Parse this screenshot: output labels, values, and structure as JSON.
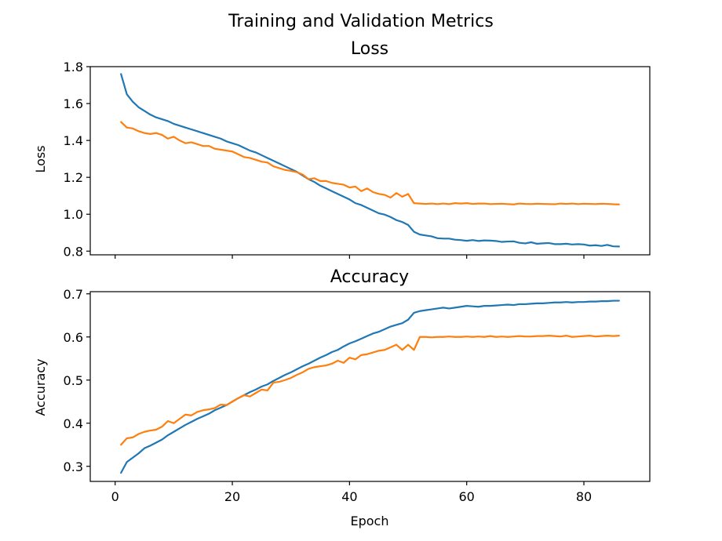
{
  "figure": {
    "suptitle": "Training and Validation Metrics",
    "xlabel": "Epoch",
    "colors": {
      "train": "#1f77b4",
      "val": "#ff7f0e"
    }
  },
  "chart_data": [
    {
      "type": "line",
      "title": "Loss",
      "xlabel": "",
      "ylabel": "Loss",
      "xlim": [
        -4.25,
        91.25
      ],
      "ylim": [
        0.78,
        1.8
      ],
      "xticks": [
        0,
        20,
        40,
        60,
        80
      ],
      "show_xticklabels": false,
      "yticks": [
        0.8,
        1.0,
        1.2,
        1.4,
        1.6,
        1.8
      ],
      "ytick_labels": [
        "0.8",
        "1.0",
        "1.2",
        "1.4",
        "1.6",
        "1.8"
      ],
      "grid": false,
      "x": [
        1,
        2,
        3,
        4,
        5,
        6,
        7,
        8,
        9,
        10,
        11,
        12,
        13,
        14,
        15,
        16,
        17,
        18,
        19,
        20,
        21,
        22,
        23,
        24,
        25,
        26,
        27,
        28,
        29,
        30,
        31,
        32,
        33,
        34,
        35,
        36,
        37,
        38,
        39,
        40,
        41,
        42,
        43,
        44,
        45,
        46,
        47,
        48,
        49,
        50,
        51,
        52,
        53,
        54,
        55,
        56,
        57,
        58,
        59,
        60,
        61,
        62,
        63,
        64,
        65,
        66,
        67,
        68,
        69,
        70,
        71,
        72,
        73,
        74,
        75,
        76,
        77,
        78,
        79,
        80,
        81,
        82,
        83,
        84,
        85,
        86
      ],
      "series": [
        {
          "color_key": "train",
          "values": [
            1.76,
            1.65,
            1.61,
            1.58,
            1.56,
            1.54,
            1.525,
            1.515,
            1.505,
            1.49,
            1.48,
            1.47,
            1.46,
            1.45,
            1.44,
            1.43,
            1.42,
            1.41,
            1.395,
            1.385,
            1.375,
            1.36,
            1.345,
            1.335,
            1.32,
            1.305,
            1.29,
            1.275,
            1.26,
            1.245,
            1.23,
            1.21,
            1.19,
            1.175,
            1.155,
            1.14,
            1.125,
            1.11,
            1.095,
            1.08,
            1.06,
            1.05,
            1.035,
            1.02,
            1.005,
            0.998,
            0.985,
            0.968,
            0.958,
            0.942,
            0.905,
            0.89,
            0.885,
            0.88,
            0.87,
            0.868,
            0.868,
            0.862,
            0.86,
            0.856,
            0.86,
            0.855,
            0.858,
            0.857,
            0.855,
            0.85,
            0.852,
            0.853,
            0.845,
            0.842,
            0.848,
            0.84,
            0.842,
            0.844,
            0.838,
            0.838,
            0.84,
            0.836,
            0.838,
            0.836,
            0.83,
            0.832,
            0.828,
            0.834,
            0.826,
            0.825
          ]
        },
        {
          "color_key": "val",
          "values": [
            1.5,
            1.47,
            1.465,
            1.45,
            1.44,
            1.435,
            1.44,
            1.43,
            1.41,
            1.42,
            1.4,
            1.385,
            1.39,
            1.38,
            1.37,
            1.37,
            1.355,
            1.35,
            1.345,
            1.34,
            1.325,
            1.31,
            1.305,
            1.295,
            1.285,
            1.28,
            1.26,
            1.25,
            1.24,
            1.235,
            1.228,
            1.215,
            1.19,
            1.195,
            1.18,
            1.18,
            1.17,
            1.165,
            1.16,
            1.145,
            1.15,
            1.125,
            1.14,
            1.12,
            1.11,
            1.105,
            1.09,
            1.115,
            1.095,
            1.11,
            1.06,
            1.058,
            1.056,
            1.058,
            1.055,
            1.058,
            1.055,
            1.06,
            1.058,
            1.06,
            1.056,
            1.058,
            1.058,
            1.055,
            1.056,
            1.057,
            1.055,
            1.053,
            1.058,
            1.056,
            1.055,
            1.057,
            1.056,
            1.055,
            1.054,
            1.058,
            1.056,
            1.058,
            1.055,
            1.057,
            1.056,
            1.055,
            1.057,
            1.056,
            1.054,
            1.053
          ]
        }
      ]
    },
    {
      "type": "line",
      "title": "Accuracy",
      "xlabel": "Epoch",
      "ylabel": "Accuracy",
      "xlim": [
        -4.25,
        91.25
      ],
      "ylim": [
        0.265,
        0.705
      ],
      "xticks": [
        0,
        20,
        40,
        60,
        80
      ],
      "xtick_labels": [
        "0",
        "20",
        "40",
        "60",
        "80"
      ],
      "show_xticklabels": true,
      "yticks": [
        0.3,
        0.4,
        0.5,
        0.6,
        0.7
      ],
      "ytick_labels": [
        "0.3",
        "0.4",
        "0.5",
        "0.6",
        "0.7"
      ],
      "grid": false,
      "x": [
        1,
        2,
        3,
        4,
        5,
        6,
        7,
        8,
        9,
        10,
        11,
        12,
        13,
        14,
        15,
        16,
        17,
        18,
        19,
        20,
        21,
        22,
        23,
        24,
        25,
        26,
        27,
        28,
        29,
        30,
        31,
        32,
        33,
        34,
        35,
        36,
        37,
        38,
        39,
        40,
        41,
        42,
        43,
        44,
        45,
        46,
        47,
        48,
        49,
        50,
        51,
        52,
        53,
        54,
        55,
        56,
        57,
        58,
        59,
        60,
        61,
        62,
        63,
        64,
        65,
        66,
        67,
        68,
        69,
        70,
        71,
        72,
        73,
        74,
        75,
        76,
        77,
        78,
        79,
        80,
        81,
        82,
        83,
        84,
        85,
        86
      ],
      "series": [
        {
          "color_key": "train",
          "values": [
            0.285,
            0.31,
            0.32,
            0.33,
            0.342,
            0.348,
            0.355,
            0.362,
            0.372,
            0.38,
            0.388,
            0.396,
            0.403,
            0.41,
            0.416,
            0.422,
            0.43,
            0.436,
            0.442,
            0.45,
            0.458,
            0.465,
            0.472,
            0.478,
            0.485,
            0.49,
            0.498,
            0.505,
            0.512,
            0.518,
            0.525,
            0.532,
            0.538,
            0.545,
            0.552,
            0.558,
            0.565,
            0.57,
            0.578,
            0.585,
            0.59,
            0.596,
            0.602,
            0.608,
            0.612,
            0.618,
            0.624,
            0.628,
            0.632,
            0.64,
            0.656,
            0.66,
            0.662,
            0.664,
            0.666,
            0.668,
            0.666,
            0.668,
            0.67,
            0.672,
            0.671,
            0.67,
            0.672,
            0.672,
            0.673,
            0.674,
            0.675,
            0.674,
            0.676,
            0.676,
            0.677,
            0.678,
            0.678,
            0.679,
            0.68,
            0.68,
            0.681,
            0.68,
            0.681,
            0.681,
            0.682,
            0.682,
            0.683,
            0.683,
            0.684,
            0.684
          ]
        },
        {
          "color_key": "val",
          "values": [
            0.35,
            0.365,
            0.367,
            0.375,
            0.38,
            0.383,
            0.385,
            0.392,
            0.405,
            0.4,
            0.41,
            0.42,
            0.418,
            0.426,
            0.43,
            0.432,
            0.435,
            0.443,
            0.442,
            0.45,
            0.458,
            0.465,
            0.462,
            0.47,
            0.478,
            0.476,
            0.494,
            0.496,
            0.5,
            0.505,
            0.512,
            0.518,
            0.526,
            0.53,
            0.532,
            0.534,
            0.538,
            0.545,
            0.54,
            0.552,
            0.548,
            0.558,
            0.56,
            0.564,
            0.568,
            0.57,
            0.576,
            0.582,
            0.57,
            0.582,
            0.57,
            0.6,
            0.6,
            0.599,
            0.6,
            0.6,
            0.601,
            0.6,
            0.6,
            0.601,
            0.6,
            0.601,
            0.6,
            0.602,
            0.6,
            0.601,
            0.6,
            0.601,
            0.602,
            0.601,
            0.601,
            0.602,
            0.602,
            0.603,
            0.602,
            0.601,
            0.603,
            0.6,
            0.601,
            0.602,
            0.603,
            0.601,
            0.602,
            0.603,
            0.602,
            0.603
          ]
        }
      ]
    }
  ]
}
